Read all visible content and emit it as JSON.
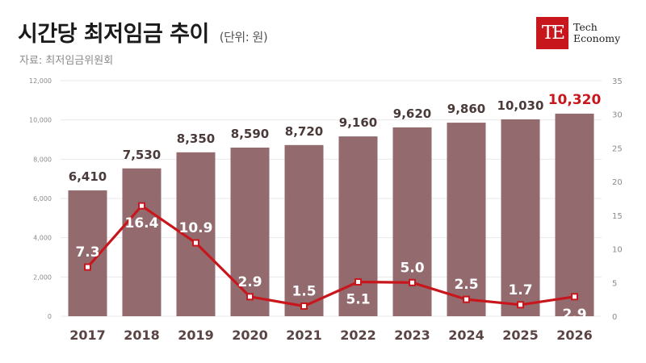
{
  "header": {
    "title": "시간당 최저임금 추이",
    "unit": "(단위: 원)",
    "source": "자료: 최저임금위원회"
  },
  "logo": {
    "mark": "TE",
    "line1": "Tech",
    "line2": "Economy"
  },
  "colors": {
    "bar": "#936b6f",
    "line": "#c8161d",
    "highlight": "#c8161d",
    "bar_label": "#4a3a3a",
    "axis_text": "#8a8a8a",
    "year_text": "#5a4444"
  },
  "chart_data": {
    "type": "bar+line",
    "categories": [
      "2017",
      "2018",
      "2019",
      "2020",
      "2021",
      "2022",
      "2023",
      "2024",
      "2025",
      "2026"
    ],
    "series": [
      {
        "values": [
          6410,
          7530,
          8350,
          8590,
          8720,
          9160,
          9620,
          9860,
          10030,
          10320
        ],
        "labels": [
          "6,410",
          "7,530",
          "8,350",
          "8,590",
          "8,720",
          "9,160",
          "9,620",
          "9,860",
          "10,030",
          "10,320"
        ],
        "axis": "left",
        "kind": "bar"
      },
      {
        "values": [
          7.3,
          16.4,
          10.9,
          2.9,
          1.5,
          5.1,
          5.0,
          2.5,
          1.7,
          2.9
        ],
        "labels": [
          "7.3",
          "16.4",
          "10.9",
          "2.9",
          "1.5",
          "5.1",
          "5.0",
          "2.5",
          "1.7",
          "2.9"
        ],
        "axis": "right",
        "kind": "line"
      }
    ],
    "left_axis": {
      "range": [
        0,
        12000
      ],
      "ticks": [
        "0",
        "2,000",
        "4,000",
        "6,000",
        "8,000",
        "10,000",
        "12,000"
      ],
      "tick_values": [
        0,
        2000,
        4000,
        6000,
        8000,
        10000,
        12000
      ]
    },
    "right_axis": {
      "range": [
        0,
        35
      ],
      "ticks": [
        "0",
        "5",
        "10",
        "15",
        "20",
        "25",
        "30",
        "35"
      ],
      "tick_values": [
        0,
        5,
        10,
        15,
        20,
        25,
        30,
        35
      ]
    },
    "highlight_index": 9,
    "grid": true
  }
}
